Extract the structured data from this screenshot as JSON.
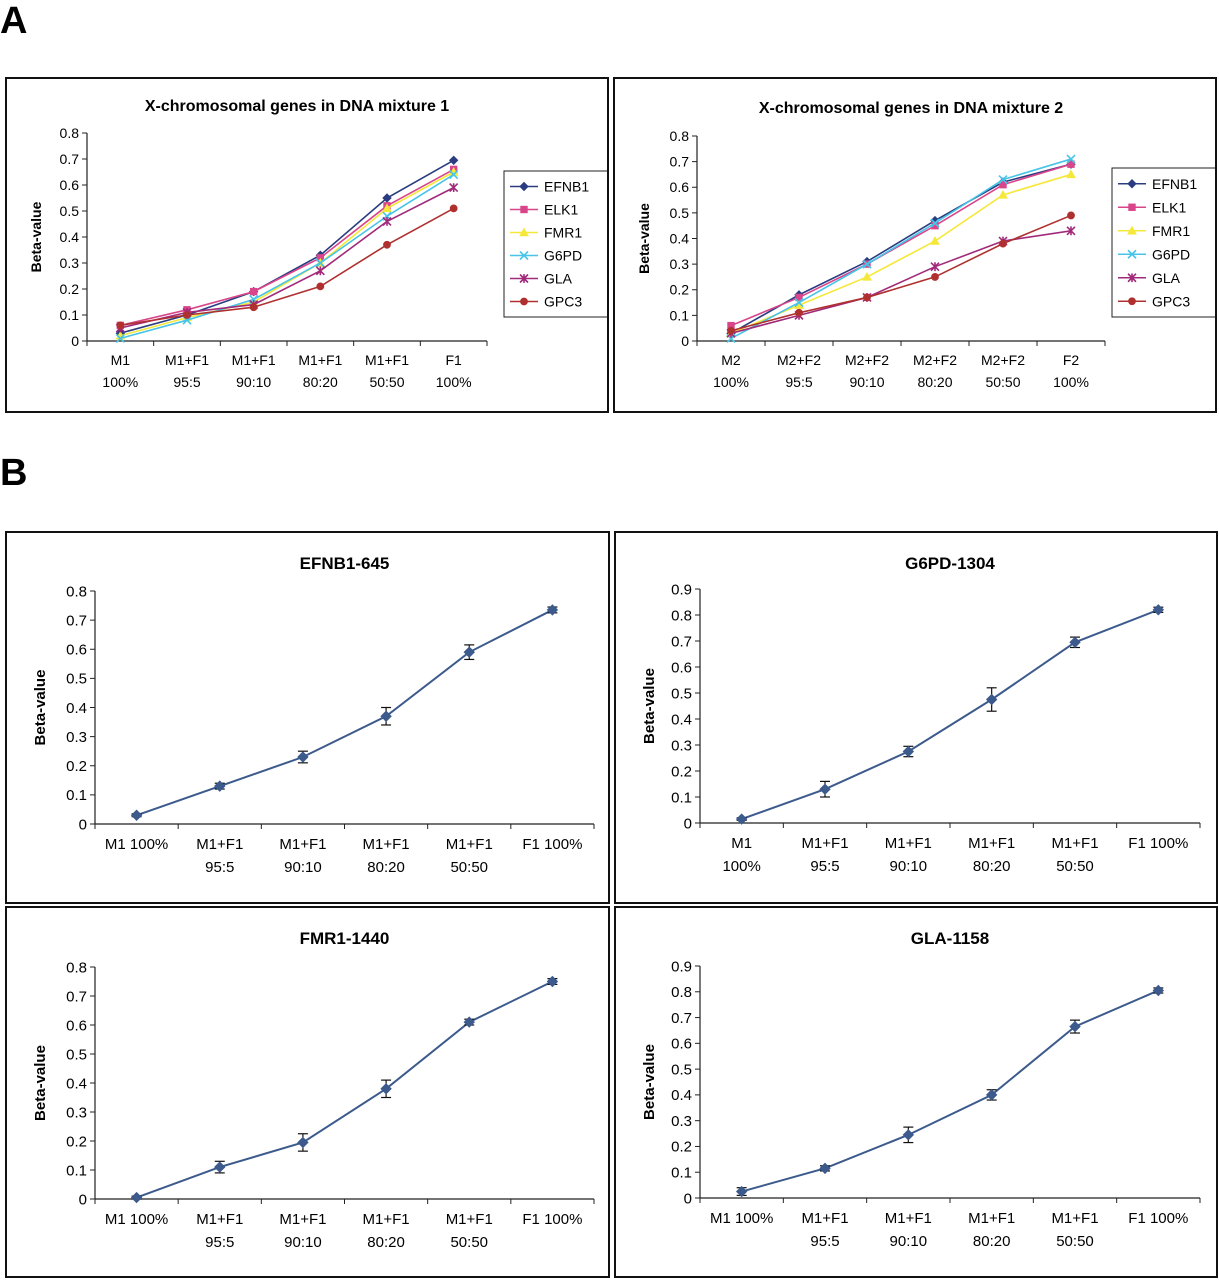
{
  "panels": {
    "a_label": "A",
    "b_label": "B"
  },
  "chart_data": [
    {
      "id": "mix1",
      "type": "line",
      "title": "X-chromosomal genes in DNA mixture 1",
      "ylabel": "Beta-value",
      "ylim": [
        0,
        0.8
      ],
      "yticks": [
        0,
        0.1,
        0.2,
        0.3,
        0.4,
        0.5,
        0.6,
        0.7,
        0.8
      ],
      "categories": [
        [
          "M1",
          "100%"
        ],
        [
          "M1+F1",
          "95:5"
        ],
        [
          "M1+F1",
          "90:10"
        ],
        [
          "M1+F1",
          "80:20"
        ],
        [
          "M1+F1",
          "50:50"
        ],
        [
          "F1",
          "100%"
        ]
      ],
      "legend": true,
      "series": [
        {
          "name": "EFNB1",
          "color": "#2b3d80",
          "marker": "diamond",
          "values": [
            0.03,
            0.1,
            0.19,
            0.33,
            0.55,
            0.695
          ]
        },
        {
          "name": "ELK1",
          "color": "#d9458a",
          "marker": "square",
          "values": [
            0.06,
            0.12,
            0.19,
            0.32,
            0.52,
            0.66
          ]
        },
        {
          "name": "FMR1",
          "color": "#f5e838",
          "marker": "triangle",
          "values": [
            0.02,
            0.09,
            0.15,
            0.3,
            0.51,
            0.65
          ]
        },
        {
          "name": "G6PD",
          "color": "#47c4e8",
          "marker": "x",
          "values": [
            0.01,
            0.08,
            0.16,
            0.3,
            0.48,
            0.64
          ]
        },
        {
          "name": "GLA",
          "color": "#a12a7a",
          "marker": "star",
          "values": [
            0.05,
            0.11,
            0.14,
            0.27,
            0.46,
            0.59
          ]
        },
        {
          "name": "GPC3",
          "color": "#b03030",
          "marker": "circle",
          "values": [
            0.06,
            0.1,
            0.13,
            0.21,
            0.37,
            0.51
          ]
        }
      ]
    },
    {
      "id": "mix2",
      "type": "line",
      "title": "X-chromosomal genes in DNA mixture 2",
      "ylabel": "Beta-value",
      "ylim": [
        0,
        0.8
      ],
      "yticks": [
        0,
        0.1,
        0.2,
        0.3,
        0.4,
        0.5,
        0.6,
        0.7,
        0.8
      ],
      "categories": [
        [
          "M2",
          "100%"
        ],
        [
          "M2+F2",
          "95:5"
        ],
        [
          "M2+F2",
          "90:10"
        ],
        [
          "M2+F2",
          "80:20"
        ],
        [
          "M2+F2",
          "50:50"
        ],
        [
          "F2",
          "100%"
        ]
      ],
      "legend": true,
      "series": [
        {
          "name": "EFNB1",
          "color": "#2b3d80",
          "marker": "diamond",
          "values": [
            0.03,
            0.18,
            0.31,
            0.47,
            0.62,
            0.69
          ]
        },
        {
          "name": "ELK1",
          "color": "#d9458a",
          "marker": "square",
          "values": [
            0.06,
            0.17,
            0.3,
            0.45,
            0.61,
            0.69
          ]
        },
        {
          "name": "FMR1",
          "color": "#f5e838",
          "marker": "triangle",
          "values": [
            0.03,
            0.14,
            0.25,
            0.39,
            0.57,
            0.65
          ]
        },
        {
          "name": "G6PD",
          "color": "#47c4e8",
          "marker": "x",
          "values": [
            0.01,
            0.15,
            0.3,
            0.46,
            0.63,
            0.71
          ]
        },
        {
          "name": "GLA",
          "color": "#a12a7a",
          "marker": "star",
          "values": [
            0.03,
            0.1,
            0.17,
            0.29,
            0.39,
            0.43
          ]
        },
        {
          "name": "GPC3",
          "color": "#b03030",
          "marker": "circle",
          "values": [
            0.04,
            0.11,
            0.17,
            0.25,
            0.38,
            0.49
          ]
        }
      ]
    },
    {
      "id": "efnb1",
      "type": "line",
      "title": "EFNB1-645",
      "ylabel": "Beta-value",
      "ylim": [
        0,
        0.8
      ],
      "yticks": [
        0,
        0.1,
        0.2,
        0.3,
        0.4,
        0.5,
        0.6,
        0.7,
        0.8
      ],
      "categories": [
        [
          "M1 100%"
        ],
        [
          "M1+F1",
          "95:5"
        ],
        [
          "M1+F1",
          "90:10"
        ],
        [
          "M1+F1",
          "80:20"
        ],
        [
          "M1+F1",
          "50:50"
        ],
        [
          "F1 100%"
        ]
      ],
      "legend": false,
      "series": [
        {
          "color": "#3c5a8c",
          "marker": "diamond",
          "values": [
            0.03,
            0.13,
            0.23,
            0.37,
            0.59,
            0.735
          ],
          "errors": [
            0.005,
            0.01,
            0.02,
            0.03,
            0.025,
            0.01
          ]
        }
      ]
    },
    {
      "id": "g6pd",
      "type": "line",
      "title": "G6PD-1304",
      "ylabel": "Beta-value",
      "ylim": [
        0,
        0.9
      ],
      "yticks": [
        0,
        0.1,
        0.2,
        0.3,
        0.4,
        0.5,
        0.6,
        0.7,
        0.8,
        0.9
      ],
      "categories": [
        [
          "M1",
          "100%"
        ],
        [
          "M1+F1",
          "95:5"
        ],
        [
          "M1+F1",
          "90:10"
        ],
        [
          "M1+F1",
          "80:20"
        ],
        [
          "M1+F1",
          "50:50"
        ],
        [
          "F1 100%"
        ]
      ],
      "legend": false,
      "series": [
        {
          "color": "#3c5a8c",
          "marker": "diamond",
          "values": [
            0.015,
            0.13,
            0.275,
            0.475,
            0.695,
            0.82
          ],
          "errors": [
            0.005,
            0.03,
            0.02,
            0.045,
            0.02,
            0.01
          ]
        }
      ]
    },
    {
      "id": "fmr1",
      "type": "line",
      "title": "FMR1-1440",
      "ylabel": "Beta-value",
      "ylim": [
        0,
        0.8
      ],
      "yticks": [
        0,
        0.1,
        0.2,
        0.3,
        0.4,
        0.5,
        0.6,
        0.7,
        0.8
      ],
      "categories": [
        [
          "M1 100%"
        ],
        [
          "M1+F1",
          "95:5"
        ],
        [
          "M1+F1",
          "90:10"
        ],
        [
          "M1+F1",
          "80:20"
        ],
        [
          "M1+F1",
          "50:50"
        ],
        [
          "F1 100%"
        ]
      ],
      "legend": false,
      "series": [
        {
          "color": "#3c5a8c",
          "marker": "diamond",
          "values": [
            0.005,
            0.11,
            0.195,
            0.38,
            0.61,
            0.75
          ],
          "errors": [
            0.005,
            0.02,
            0.03,
            0.03,
            0.01,
            0.01
          ]
        }
      ]
    },
    {
      "id": "gla",
      "type": "line",
      "title": "GLA-1158",
      "ylabel": "Beta-value",
      "ylim": [
        0,
        0.9
      ],
      "yticks": [
        0,
        0.1,
        0.2,
        0.3,
        0.4,
        0.5,
        0.6,
        0.7,
        0.8,
        0.9
      ],
      "categories": [
        [
          "M1 100%"
        ],
        [
          "M1+F1",
          "95:5"
        ],
        [
          "M1+F1",
          "90:10"
        ],
        [
          "M1+F1",
          "80:20"
        ],
        [
          "M1+F1",
          "50:50"
        ],
        [
          "F1 100%"
        ]
      ],
      "legend": false,
      "series": [
        {
          "color": "#3c5a8c",
          "marker": "diamond",
          "values": [
            0.025,
            0.115,
            0.245,
            0.4,
            0.665,
            0.805
          ],
          "errors": [
            0.015,
            0.01,
            0.03,
            0.02,
            0.025,
            0.01
          ]
        }
      ]
    }
  ]
}
